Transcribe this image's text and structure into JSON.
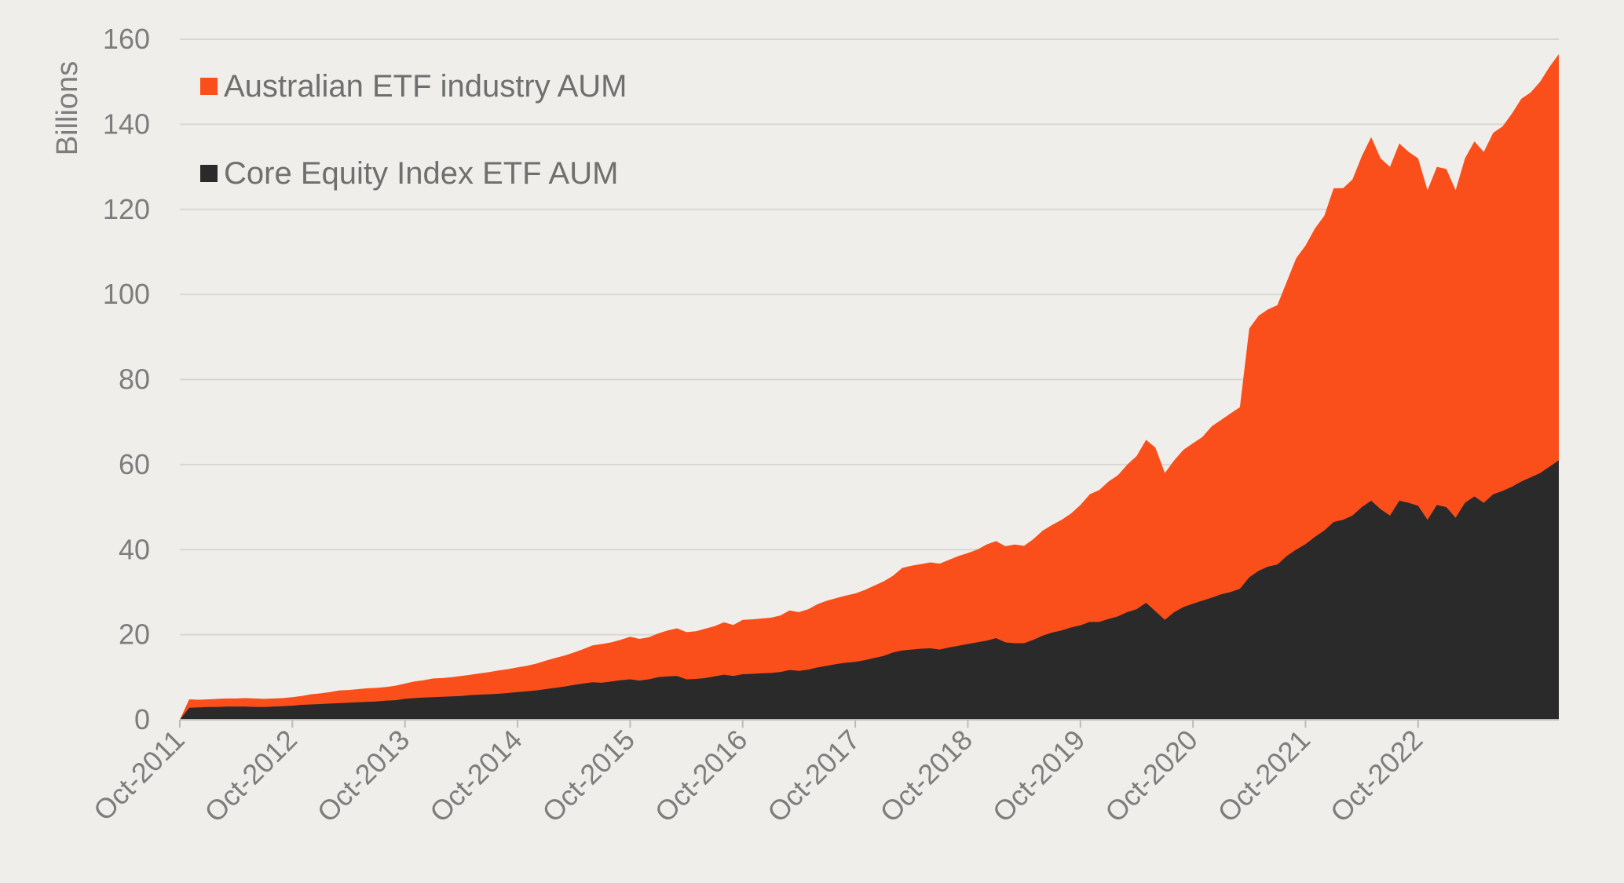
{
  "chart_data": {
    "type": "area",
    "title": "",
    "xlabel": "",
    "ylabel": "Billions",
    "ylim": [
      0,
      160
    ],
    "y_ticks": [
      0,
      20,
      40,
      60,
      80,
      100,
      120,
      140,
      160
    ],
    "x_tick_labels": [
      "Oct-2011",
      "Oct-2012",
      "Oct-2013",
      "Oct-2014",
      "Oct-2015",
      "Oct-2016",
      "Oct-2017",
      "Oct-2018",
      "Oct-2019",
      "Oct-2020",
      "Oct-2021",
      "Oct-2022"
    ],
    "x_start": "Oct-2011",
    "x_end": "Jul-2023",
    "grid": true,
    "legend": "top-left",
    "colors": {
      "background": "#f0eeeb",
      "industry": "#fa4f1a",
      "core": "#2a2a2a",
      "grid": "#d9d7d4",
      "text": "#7d7d7d"
    },
    "series": [
      {
        "name": "Australian ETF industry AUM",
        "color": "#fa4f1a",
        "values": [
          0,
          4.8,
          4.7,
          4.8,
          4.9,
          5.0,
          5.0,
          5.1,
          5.0,
          4.9,
          5.0,
          5.1,
          5.3,
          5.6,
          6.0,
          6.2,
          6.5,
          6.9,
          7.0,
          7.2,
          7.4,
          7.5,
          7.7,
          8.0,
          8.5,
          9.0,
          9.3,
          9.7,
          9.8,
          10.0,
          10.3,
          10.6,
          10.9,
          11.2,
          11.6,
          11.9,
          12.3,
          12.7,
          13.2,
          13.9,
          14.5,
          15.1,
          15.8,
          16.6,
          17.5,
          17.8,
          18.2,
          18.8,
          19.5,
          19.0,
          19.4,
          20.3,
          21.0,
          21.5,
          20.6,
          20.8,
          21.4,
          22.0,
          22.9,
          22.3,
          23.5,
          23.6,
          23.8,
          24.0,
          24.5,
          25.7,
          25.3,
          26.0,
          27.2,
          28.0,
          28.6,
          29.2,
          29.7,
          30.5,
          31.5,
          32.5,
          33.8,
          35.7,
          36.2,
          36.6,
          37.0,
          36.7,
          37.6,
          38.5,
          39.2,
          40.0,
          41.2,
          42.0,
          40.8,
          41.2,
          40.9,
          42.5,
          44.5,
          45.8,
          47.0,
          48.5,
          50.5,
          53.0,
          54.0,
          56.0,
          57.5,
          60.0,
          62.0,
          65.8,
          64.0,
          58.0,
          61.0,
          63.5,
          65.0,
          66.5,
          69.0,
          70.5,
          72.0,
          73.5,
          92.0,
          95.0,
          96.5,
          97.5,
          103.0,
          108.5,
          111.5,
          115.5,
          118.5,
          125.0,
          125.0,
          127.0,
          132.5,
          137.0,
          132.0,
          130.0,
          135.5,
          133.5,
          132.0,
          124.5,
          130.0,
          129.5,
          124.5,
          132.0,
          136.0,
          133.5,
          138.0,
          139.5,
          142.5,
          146.0,
          147.5,
          150.0,
          153.5,
          156.5
        ]
      },
      {
        "name": "Core Equity Index ETF AUM",
        "color": "#2a2a2a",
        "values": [
          0,
          2.8,
          2.9,
          3.0,
          3.0,
          3.1,
          3.1,
          3.1,
          3.0,
          3.0,
          3.1,
          3.2,
          3.3,
          3.5,
          3.6,
          3.7,
          3.8,
          3.9,
          4.0,
          4.1,
          4.2,
          4.3,
          4.5,
          4.6,
          4.9,
          5.1,
          5.2,
          5.3,
          5.4,
          5.5,
          5.6,
          5.8,
          5.9,
          6.0,
          6.1,
          6.3,
          6.5,
          6.7,
          6.9,
          7.2,
          7.5,
          7.8,
          8.2,
          8.5,
          8.8,
          8.7,
          9.0,
          9.3,
          9.5,
          9.2,
          9.5,
          10.0,
          10.2,
          10.3,
          9.5,
          9.6,
          9.8,
          10.2,
          10.6,
          10.3,
          10.7,
          10.8,
          10.9,
          11.0,
          11.2,
          11.7,
          11.5,
          11.8,
          12.3,
          12.7,
          13.1,
          13.4,
          13.6,
          14.0,
          14.5,
          15.0,
          15.8,
          16.3,
          16.5,
          16.7,
          16.8,
          16.5,
          17.0,
          17.4,
          17.8,
          18.2,
          18.6,
          19.2,
          18.2,
          18.0,
          18.0,
          18.8,
          19.8,
          20.5,
          21.0,
          21.7,
          22.2,
          23.0,
          23.0,
          23.7,
          24.3,
          25.3,
          26.0,
          27.5,
          25.5,
          23.5,
          25.3,
          26.5,
          27.3,
          28.0,
          28.7,
          29.5,
          30.0,
          30.8,
          33.5,
          35.0,
          36.0,
          36.5,
          38.5,
          40.0,
          41.3,
          43.0,
          44.5,
          46.5,
          47.0,
          48.0,
          50.0,
          51.5,
          49.5,
          48.0,
          51.5,
          51.0,
          50.3,
          47.0,
          50.5,
          50.0,
          47.5,
          51.0,
          52.5,
          51.0,
          53.0,
          53.8,
          54.8,
          56.0,
          57.0,
          58.0,
          59.5,
          61.0
        ]
      }
    ]
  },
  "legend": {
    "industry_label": "Australian ETF industry AUM",
    "core_label": "Core Equity Index ETF AUM"
  }
}
